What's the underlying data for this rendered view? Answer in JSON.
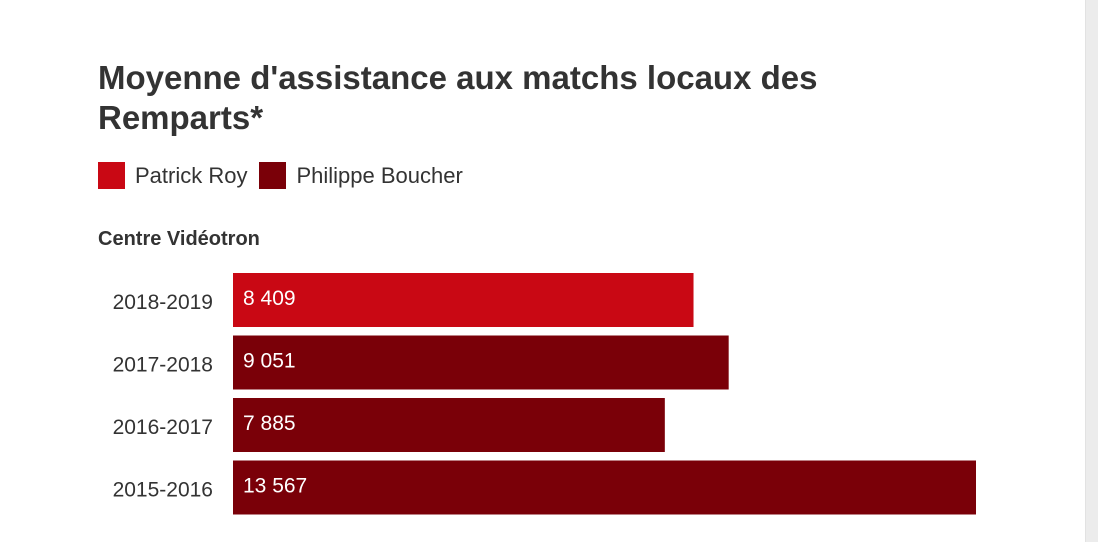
{
  "title": "Moyenne d'assistance aux matchs locaux des Remparts*",
  "legend": [
    {
      "label": "Patrick Roy",
      "color": "#c90814"
    },
    {
      "label": "Philippe Boucher",
      "color": "#7a0008"
    }
  ],
  "section_label": "Centre Vidéotron",
  "chart_data": {
    "type": "bar",
    "orientation": "horizontal",
    "title": "Moyenne d'assistance aux matchs locaux des Remparts*",
    "subtitle": "Centre Vidéotron",
    "categories": [
      "2018-2019",
      "2017-2018",
      "2016-2017",
      "2015-2016"
    ],
    "values": [
      8409,
      9051,
      7885,
      13567
    ],
    "value_labels": [
      "8 409",
      "9 051",
      "7 885",
      "13 567"
    ],
    "coach": [
      "Patrick Roy",
      "Philippe Boucher",
      "Philippe Boucher",
      "Philippe Boucher"
    ],
    "series": [
      {
        "name": "Patrick Roy",
        "color": "#c90814"
      },
      {
        "name": "Philippe Boucher",
        "color": "#7a0008"
      }
    ],
    "xlim": [
      0,
      13567
    ],
    "grid": false,
    "legend_position": "top-left"
  }
}
